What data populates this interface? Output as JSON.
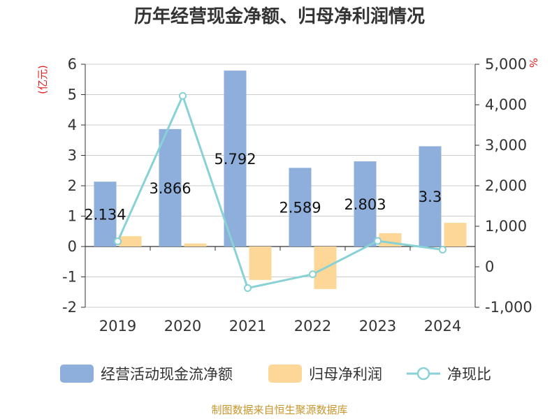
{
  "chart_data": {
    "type": "bar",
    "title": "历年经营现金净额、归母净利润情况",
    "categories": [
      "2019",
      "2020",
      "2021",
      "2022",
      "2023",
      "2024"
    ],
    "series": [
      {
        "name": "经营活动现金流净额",
        "type": "bar",
        "axis": "left",
        "color": "#8eaedb",
        "values": [
          2.134,
          3.866,
          5.792,
          2.589,
          2.803,
          3.3
        ],
        "labels": [
          "2.134",
          "3.866",
          "5.792",
          "2.589",
          "2.803",
          "3.3"
        ]
      },
      {
        "name": "归母净利润",
        "type": "bar",
        "axis": "left",
        "color": "#fdd797",
        "values": [
          0.34,
          0.1,
          -1.1,
          -1.4,
          0.44,
          0.78
        ]
      },
      {
        "name": "净现比",
        "type": "line",
        "axis": "right",
        "color": "#88d2d5",
        "values": [
          628,
          4220,
          -526,
          -185,
          637,
          423
        ]
      }
    ],
    "y_left": {
      "unit": "(亿元)",
      "ylim": [
        -2,
        6
      ],
      "ticks": [
        "-2",
        "-1",
        "0",
        "1",
        "2",
        "3",
        "4",
        "5",
        "6"
      ]
    },
    "y_right": {
      "unit": "%",
      "ylim": [
        -1000,
        5000
      ],
      "ticks": [
        "-1,000",
        "0",
        "1,000",
        "2,000",
        "3,000",
        "4,000",
        "5,000"
      ]
    },
    "grid": true,
    "legend_position": "bottom",
    "unit_color": "#e02020",
    "source": "制图数据来自恒生聚源数据库",
    "source_color": "#c8962e"
  }
}
